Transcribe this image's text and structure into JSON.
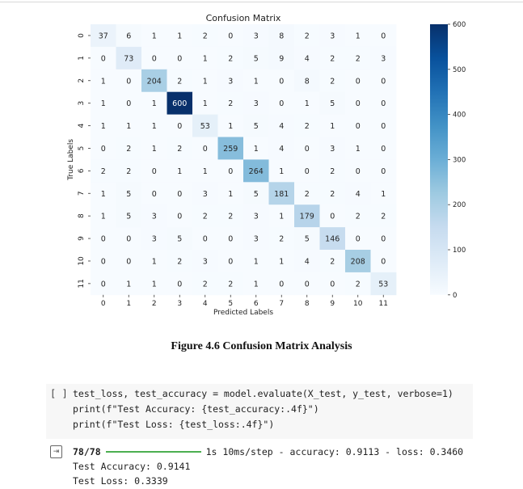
{
  "chart_data": {
    "type": "heatmap",
    "title": "Confusion Matrix",
    "xlabel": "Predicted Labels",
    "ylabel": "True Labels",
    "x_ticks": [
      "0",
      "1",
      "2",
      "3",
      "4",
      "5",
      "6",
      "7",
      "8",
      "9",
      "10",
      "11"
    ],
    "y_ticks": [
      "0",
      "1",
      "2",
      "3",
      "4",
      "5",
      "6",
      "7",
      "8",
      "9",
      "10",
      "11"
    ],
    "matrix": [
      [
        37,
        6,
        1,
        1,
        2,
        0,
        3,
        8,
        2,
        3,
        1,
        0
      ],
      [
        0,
        73,
        0,
        0,
        1,
        2,
        5,
        9,
        4,
        2,
        2,
        3
      ],
      [
        1,
        0,
        204,
        2,
        1,
        3,
        1,
        0,
        8,
        2,
        0,
        0
      ],
      [
        1,
        0,
        1,
        600,
        1,
        2,
        3,
        0,
        1,
        5,
        0,
        0
      ],
      [
        1,
        1,
        1,
        0,
        53,
        1,
        5,
        4,
        2,
        1,
        0,
        0
      ],
      [
        0,
        2,
        1,
        2,
        0,
        259,
        1,
        4,
        0,
        3,
        1,
        0
      ],
      [
        2,
        2,
        0,
        1,
        1,
        0,
        264,
        1,
        0,
        2,
        0,
        0
      ],
      [
        1,
        5,
        0,
        0,
        3,
        1,
        5,
        181,
        2,
        2,
        4,
        1
      ],
      [
        1,
        5,
        3,
        0,
        2,
        2,
        3,
        1,
        179,
        0,
        2,
        2
      ],
      [
        0,
        0,
        3,
        5,
        0,
        0,
        3,
        2,
        5,
        146,
        0,
        0
      ],
      [
        0,
        0,
        1,
        2,
        3,
        0,
        1,
        1,
        4,
        2,
        208,
        0
      ],
      [
        0,
        1,
        1,
        0,
        2,
        2,
        1,
        0,
        0,
        0,
        2,
        53
      ]
    ],
    "colorbar": {
      "min": 0,
      "max": 600,
      "ticks": [
        "0",
        "100",
        "200",
        "300",
        "400",
        "500",
        "600"
      ]
    },
    "colormap": "Blues"
  },
  "caption": "Figure 4.6 Confusion Matrix Analysis",
  "notebook": {
    "run_button": "[ ]",
    "code_line1": "test_loss, test_accuracy = model.evaluate(X_test, y_test, verbose=1)",
    "code_line2": "print(f\"Test Accuracy: {test_accuracy:.4f}\")",
    "code_line3": "print(f\"Test Loss: {test_loss:.4f}\")",
    "output_icon": "output-toggle-icon",
    "progress_steps": "78/78",
    "progress_fraction": 1.0,
    "progress_stats": "1s 10ms/step - accuracy: 0.9113 - loss: 0.3460",
    "output_line2": "Test Accuracy: 0.9141",
    "output_line3": "Test Loss: 0.3339"
  }
}
